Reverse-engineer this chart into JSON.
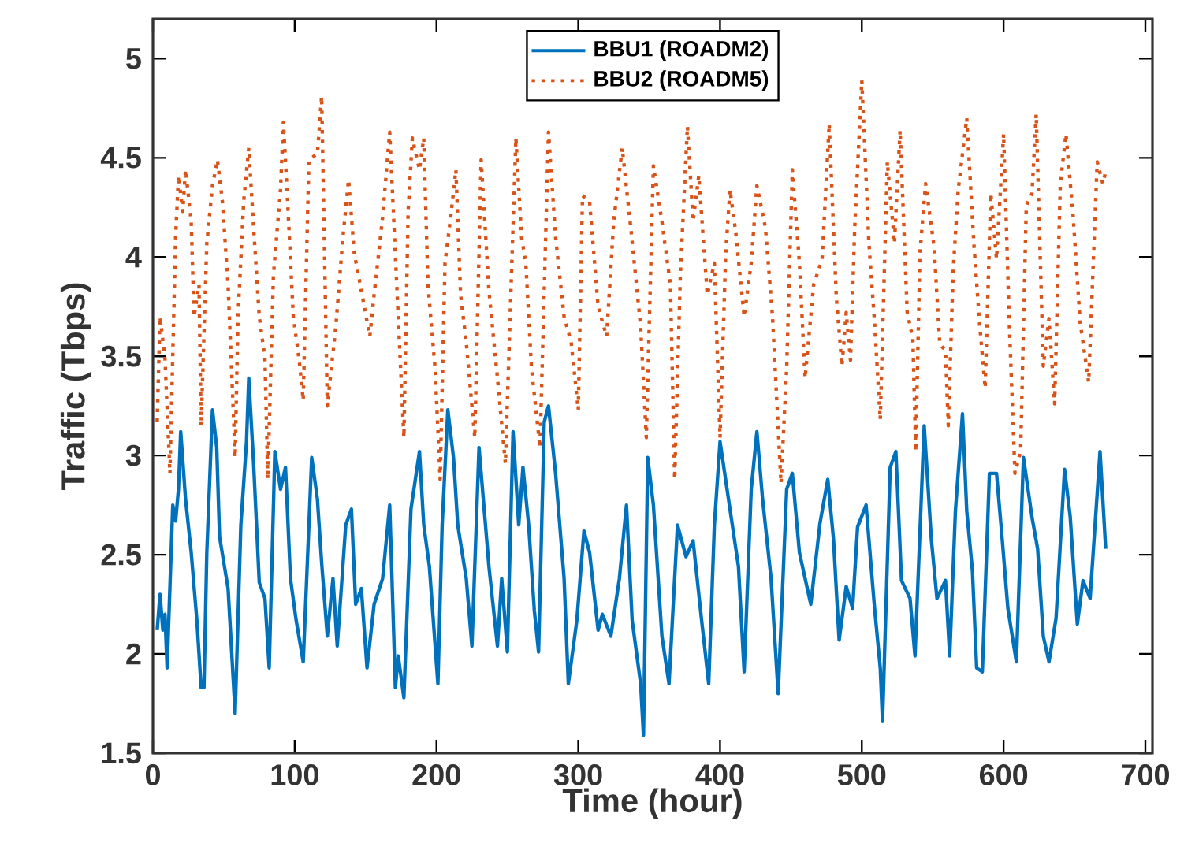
{
  "chart_data": {
    "type": "line",
    "xlabel": "Time (hour)",
    "ylabel": "Traffic (Tbps)",
    "xlim": [
      0,
      705
    ],
    "ylim": [
      1.5,
      5.2
    ],
    "xticks": [
      0,
      100,
      200,
      300,
      400,
      500,
      600,
      700
    ],
    "yticks": [
      1.5,
      2,
      2.5,
      3,
      3.5,
      4,
      4.5,
      5
    ],
    "grid": false,
    "legend": "top",
    "marker": "none",
    "series": [
      {
        "name": "BBU1 (ROADM2)",
        "color": "#0072bd",
        "line_style": "solid",
        "x": [
          3,
          5,
          7,
          8.5,
          10,
          14,
          16,
          18,
          19.6,
          23,
          27,
          31,
          34,
          36,
          38,
          42,
          45,
          47,
          53,
          58,
          62,
          66,
          67.6,
          71,
          75,
          79,
          82,
          86,
          90,
          93.5,
          97,
          101,
          106,
          112,
          116,
          119,
          123,
          127,
          130,
          136,
          140,
          143,
          147,
          151,
          156,
          162,
          167,
          171,
          173,
          177,
          182,
          188,
          191,
          195,
          201,
          204,
          208,
          212,
          215,
          221,
          225,
          230,
          237,
          243,
          246,
          250,
          254,
          258,
          261,
          265,
          269,
          272,
          276,
          279,
          284,
          290,
          293,
          299,
          304,
          308,
          314,
          317,
          323,
          329,
          334,
          338,
          344,
          346,
          349,
          353,
          359,
          364,
          370,
          376,
          381,
          387,
          392,
          396,
          400,
          407,
          413,
          417,
          422,
          426,
          430,
          436,
          441,
          447,
          451,
          456,
          464,
          470.5,
          476,
          480,
          484,
          489,
          493.5,
          497,
          503,
          509,
          513,
          514.6,
          520,
          524,
          528,
          534,
          537.5,
          544,
          549,
          553,
          559,
          562,
          566,
          571,
          574,
          578,
          581,
          585,
          590,
          595,
          599,
          603,
          609,
          614,
          620,
          624,
          628,
          632,
          637,
          643,
          647,
          652,
          656,
          661,
          668,
          672
        ],
        "values": [
          2.12,
          2.3,
          2.12,
          2.2,
          1.93,
          2.75,
          2.67,
          2.83,
          3.12,
          2.78,
          2.51,
          2.17,
          1.83,
          1.83,
          2.51,
          3.23,
          3.04,
          2.59,
          2.33,
          1.7,
          2.65,
          3.07,
          3.39,
          2.96,
          2.36,
          2.28,
          1.93,
          3.02,
          2.83,
          2.94,
          2.38,
          2.17,
          1.96,
          2.99,
          2.78,
          2.46,
          2.09,
          2.38,
          2.04,
          2.65,
          2.73,
          2.25,
          2.33,
          1.93,
          2.25,
          2.38,
          2.75,
          1.83,
          1.99,
          1.78,
          2.73,
          3.02,
          2.65,
          2.44,
          1.85,
          2.65,
          3.23,
          2.99,
          2.65,
          2.38,
          2.04,
          3.04,
          2.44,
          2.04,
          2.38,
          2.01,
          3.12,
          2.65,
          2.94,
          2.65,
          2.22,
          2.01,
          3.17,
          3.25,
          2.91,
          2.38,
          1.85,
          2.17,
          2.62,
          2.51,
          2.12,
          2.2,
          2.09,
          2.38,
          2.75,
          2.17,
          1.85,
          1.59,
          2.99,
          2.75,
          2.09,
          1.85,
          2.65,
          2.49,
          2.57,
          2.17,
          1.85,
          2.65,
          3.07,
          2.73,
          2.44,
          1.91,
          2.83,
          3.12,
          2.78,
          2.38,
          1.8,
          2.83,
          2.91,
          2.51,
          2.25,
          2.66,
          2.88,
          2.58,
          2.07,
          2.34,
          2.23,
          2.64,
          2.75,
          2.23,
          1.93,
          1.66,
          2.94,
          3.02,
          2.37,
          2.28,
          1.99,
          3.15,
          2.58,
          2.28,
          2.37,
          1.99,
          2.72,
          3.21,
          2.72,
          2.42,
          1.93,
          1.91,
          2.91,
          2.91,
          2.58,
          2.23,
          1.96,
          2.99,
          2.69,
          2.53,
          2.09,
          1.96,
          2.18,
          2.93,
          2.69,
          2.15,
          2.37,
          2.28,
          3.02,
          2.53
        ]
      },
      {
        "name": "BBU2 (ROADM5)",
        "color": "#d95319",
        "line_style": "dotted",
        "x": [
          3,
          5,
          8.5,
          12,
          16,
          18,
          21,
          23,
          27,
          29,
          32.5,
          34,
          38,
          42,
          45.5,
          49,
          53,
          58,
          60,
          64,
          67.6,
          71,
          75,
          79,
          81,
          85,
          90,
          92,
          95,
          99,
          103,
          106,
          110,
          116,
          119,
          123,
          129,
          134,
          138,
          142,
          147,
          153,
          156,
          162,
          167,
          173,
          177,
          180,
          183,
          188,
          191,
          194,
          199,
          202.6,
          206,
          210,
          213.7,
          217,
          221,
          227,
          231.5,
          237,
          243,
          248.6,
          256,
          260,
          263,
          267,
          273,
          279,
          284,
          290,
          295,
          300,
          303,
          308,
          314,
          320,
          325,
          331,
          337,
          344,
          348,
          353,
          359,
          365,
          368,
          372,
          377,
          381,
          385,
          391,
          396,
          400,
          404,
          407,
          411,
          417,
          422,
          426,
          432,
          437,
          443,
          447,
          451,
          456,
          460,
          466,
          472,
          477,
          482,
          486,
          489,
          492,
          495,
          500,
          505,
          509,
          513,
          518,
          523,
          527,
          532,
          536,
          538,
          541,
          545,
          551,
          555,
          559,
          561,
          564.5,
          568,
          574,
          579,
          583,
          587,
          591,
          595,
          600,
          604,
          608,
          612,
          616,
          620,
          623,
          628,
          632,
          636,
          640,
          644,
          649,
          654,
          660,
          666,
          670,
          672
        ],
        "values": [
          3.17,
          3.7,
          3.49,
          2.91,
          4.1,
          4.41,
          4.23,
          4.44,
          4.18,
          3.7,
          3.86,
          3.15,
          4.07,
          4.36,
          4.49,
          4.28,
          3.86,
          2.99,
          3.7,
          4.28,
          4.55,
          4.15,
          3.7,
          3.49,
          2.88,
          3.91,
          4.34,
          4.68,
          4.28,
          3.7,
          3.49,
          3.28,
          4.49,
          4.52,
          4.81,
          3.25,
          3.65,
          4.1,
          4.39,
          4.02,
          3.83,
          3.6,
          3.81,
          4.2,
          4.63,
          3.7,
          3.09,
          4.23,
          4.6,
          4.44,
          4.6,
          3.86,
          3.44,
          2.88,
          3.97,
          4.2,
          4.44,
          3.81,
          3.57,
          3.09,
          4.49,
          3.83,
          3.39,
          2.96,
          4.6,
          4.1,
          3.97,
          3.44,
          3.04,
          4.63,
          4.1,
          3.7,
          3.57,
          3.23,
          4.31,
          4.28,
          3.75,
          3.6,
          4.18,
          4.55,
          4.15,
          3.65,
          3.09,
          4.46,
          4.18,
          3.86,
          2.88,
          3.91,
          4.66,
          4.18,
          4.41,
          3.81,
          3.97,
          3.09,
          4.02,
          4.34,
          4.13,
          3.7,
          3.97,
          4.36,
          4.15,
          3.7,
          2.86,
          3.44,
          4.44,
          3.97,
          3.39,
          3.86,
          3.99,
          4.67,
          3.8,
          3.45,
          3.72,
          3.48,
          4.15,
          4.89,
          4.07,
          3.67,
          3.18,
          4.48,
          4.07,
          4.64,
          3.72,
          3.59,
          3.02,
          4.02,
          4.37,
          4.05,
          3.56,
          3.53,
          3.15,
          3.94,
          4.34,
          4.7,
          4.07,
          3.67,
          3.34,
          4.32,
          3.99,
          4.62,
          3.67,
          2.91,
          3.02,
          4.26,
          4.32,
          4.72,
          3.45,
          3.69,
          3.26,
          4.37,
          4.62,
          4.21,
          3.67,
          3.37,
          4.48,
          4.37,
          4.43
        ]
      }
    ]
  }
}
